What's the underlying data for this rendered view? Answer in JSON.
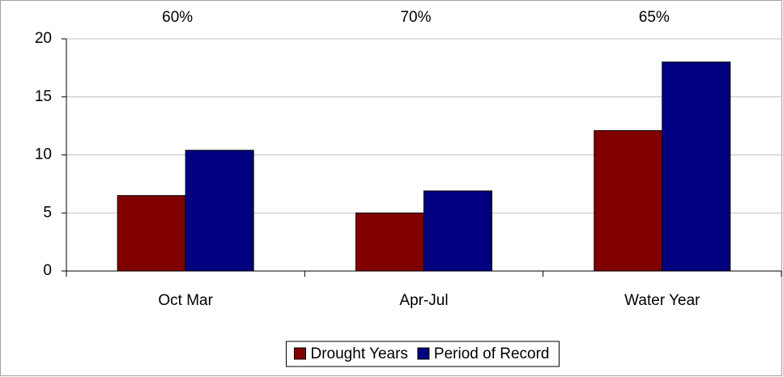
{
  "chart_data": {
    "type": "bar",
    "categories": [
      "Oct Mar",
      "Apr-Jul",
      "Water Year"
    ],
    "annotations": [
      "60%",
      "70%",
      "65%"
    ],
    "series": [
      {
        "name": "Drought Years",
        "color": "#800000",
        "values": [
          6.5,
          5.0,
          12.1
        ]
      },
      {
        "name": "Period of Record",
        "color": "#000080",
        "values": [
          10.4,
          6.9,
          18.0
        ]
      }
    ],
    "ylim": [
      0,
      20
    ],
    "yticks": [
      0,
      5,
      10,
      15,
      20
    ],
    "grid": true,
    "legend": "bottom"
  }
}
